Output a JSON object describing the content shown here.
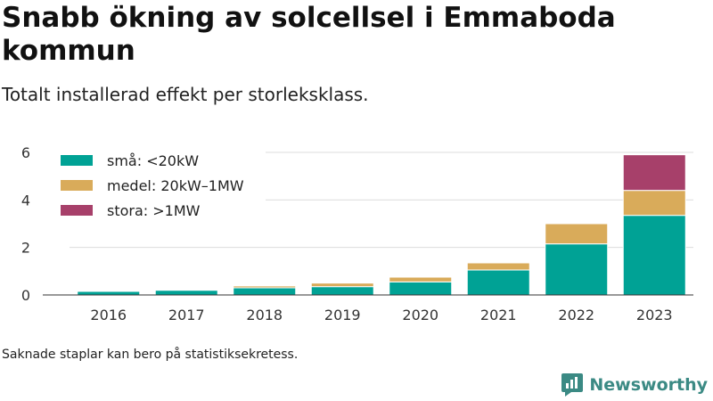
{
  "title": "Snabb ökning av solcellsel i Emmaboda kommun",
  "subtitle": "Totalt installerad effekt per storleksklass.",
  "footnote": "Saknade staplar kan bero på statistiksekretess.",
  "brand": "Newsworthy",
  "colors": {
    "sma": "#00a295",
    "medel": "#d9ab5a",
    "stora": "#a7406a"
  },
  "chart_data": {
    "type": "bar",
    "stacked": true,
    "categories": [
      "2016",
      "2017",
      "2018",
      "2019",
      "2020",
      "2021",
      "2022",
      "2023"
    ],
    "series": [
      {
        "name": "små: <20kW",
        "color": "#00a295",
        "values": [
          0.15,
          0.2,
          0.3,
          0.35,
          0.55,
          1.05,
          2.15,
          3.35
        ]
      },
      {
        "name": "medel: 20kW–1MW",
        "color": "#d9ab5a",
        "values": [
          0.02,
          0.03,
          0.08,
          0.15,
          0.2,
          0.3,
          0.85,
          1.05
        ]
      },
      {
        "name": "stora: >1MW",
        "color": "#a7406a",
        "values": [
          0,
          0,
          0,
          0,
          0,
          0,
          0,
          1.5
        ]
      }
    ],
    "yticks": [
      0,
      2,
      4,
      6
    ],
    "ylim": [
      0,
      6.6
    ],
    "grid": true,
    "legend_position": "top-left",
    "xlabel": "",
    "ylabel": ""
  }
}
